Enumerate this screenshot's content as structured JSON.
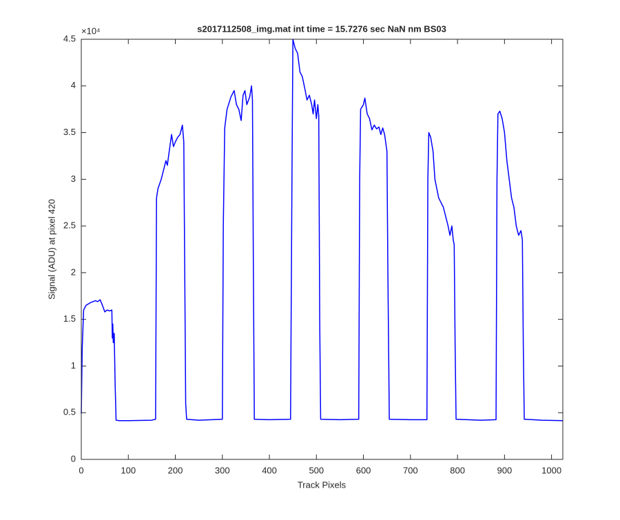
{
  "chart_data": {
    "type": "line",
    "title": "s2017112508_img.mat int time = 15.7276 sec  NaN nm BS03",
    "x_label": "Track Pixels",
    "y_label": "Signal (ADU) at pixel 420",
    "y_multiplier": "×10⁴",
    "color": "#0000ff",
    "xlim": [
      0,
      1024
    ],
    "ylim": [
      0,
      45000
    ],
    "xticks": [
      0,
      100,
      200,
      300,
      400,
      500,
      600,
      700,
      800,
      900,
      1000
    ],
    "yticks": [
      {
        "value": 0,
        "label": "0"
      },
      {
        "value": 5000,
        "label": "0.5"
      },
      {
        "value": 10000,
        "label": "1"
      },
      {
        "value": 15000,
        "label": "1.5"
      },
      {
        "value": 20000,
        "label": "2"
      },
      {
        "value": 25000,
        "label": "2.5"
      },
      {
        "value": 30000,
        "label": "3"
      },
      {
        "value": 35000,
        "label": "3.5"
      },
      {
        "value": 40000,
        "label": "4"
      },
      {
        "value": 45000,
        "label": "4.5"
      }
    ],
    "x": [
      0,
      2,
      5,
      10,
      20,
      30,
      35,
      40,
      45,
      50,
      55,
      60,
      65,
      66,
      67,
      68,
      70,
      72,
      74,
      80,
      100,
      150,
      158,
      160,
      163,
      170,
      175,
      180,
      183,
      187,
      192,
      196,
      200,
      205,
      210,
      215,
      218,
      220,
      222,
      224,
      250,
      300,
      302,
      305,
      310,
      318,
      325,
      330,
      335,
      340,
      344,
      348,
      352,
      358,
      362,
      364,
      366,
      368,
      400,
      445,
      448,
      450,
      455,
      460,
      465,
      470,
      475,
      480,
      485,
      490,
      493,
      496,
      500,
      503,
      505,
      507,
      509,
      550,
      590,
      592,
      594,
      600,
      603,
      608,
      613,
      618,
      623,
      628,
      633,
      637,
      641,
      645,
      650,
      652,
      655,
      700,
      735,
      737,
      739,
      743,
      748,
      752,
      756,
      760,
      765,
      770,
      775,
      780,
      784,
      788,
      791,
      793,
      795,
      797,
      850,
      882,
      884,
      886,
      890,
      895,
      900,
      905,
      910,
      915,
      920,
      925,
      930,
      935,
      938,
      940,
      942,
      980,
      1024
    ],
    "values": [
      4900,
      12000,
      16000,
      16500,
      16800,
      17000,
      16900,
      17100,
      16500,
      15800,
      16000,
      15900,
      16000,
      13000,
      14500,
      12500,
      13500,
      8000,
      4200,
      4150,
      4150,
      4200,
      4300,
      28000,
      29000,
      30000,
      31000,
      32000,
      31500,
      33000,
      34800,
      33500,
      34000,
      34500,
      34800,
      35800,
      34000,
      20000,
      6000,
      4300,
      4200,
      4300,
      25000,
      35500,
      37500,
      38800,
      39500,
      38000,
      37500,
      36300,
      39000,
      39500,
      38000,
      38800,
      40000,
      38500,
      20000,
      4300,
      4250,
      4300,
      30000,
      45000,
      44000,
      43500,
      41500,
      41000,
      39800,
      38500,
      39000,
      38000,
      37000,
      38500,
      36500,
      38000,
      36800,
      15000,
      4300,
      4250,
      4300,
      30000,
      37500,
      38000,
      38700,
      37000,
      36500,
      35300,
      35800,
      35400,
      35600,
      34800,
      35500,
      34800,
      33000,
      20000,
      4300,
      4250,
      4250,
      30000,
      35000,
      34500,
      33000,
      30000,
      29000,
      28000,
      27500,
      27000,
      26000,
      25000,
      24000,
      25000,
      23500,
      23000,
      12000,
      4300,
      4200,
      4250,
      30000,
      37000,
      37300,
      36500,
      35000,
      32000,
      30000,
      28000,
      27000,
      25000,
      24000,
      24500,
      23500,
      12000,
      4300,
      4200,
      4150
    ]
  }
}
